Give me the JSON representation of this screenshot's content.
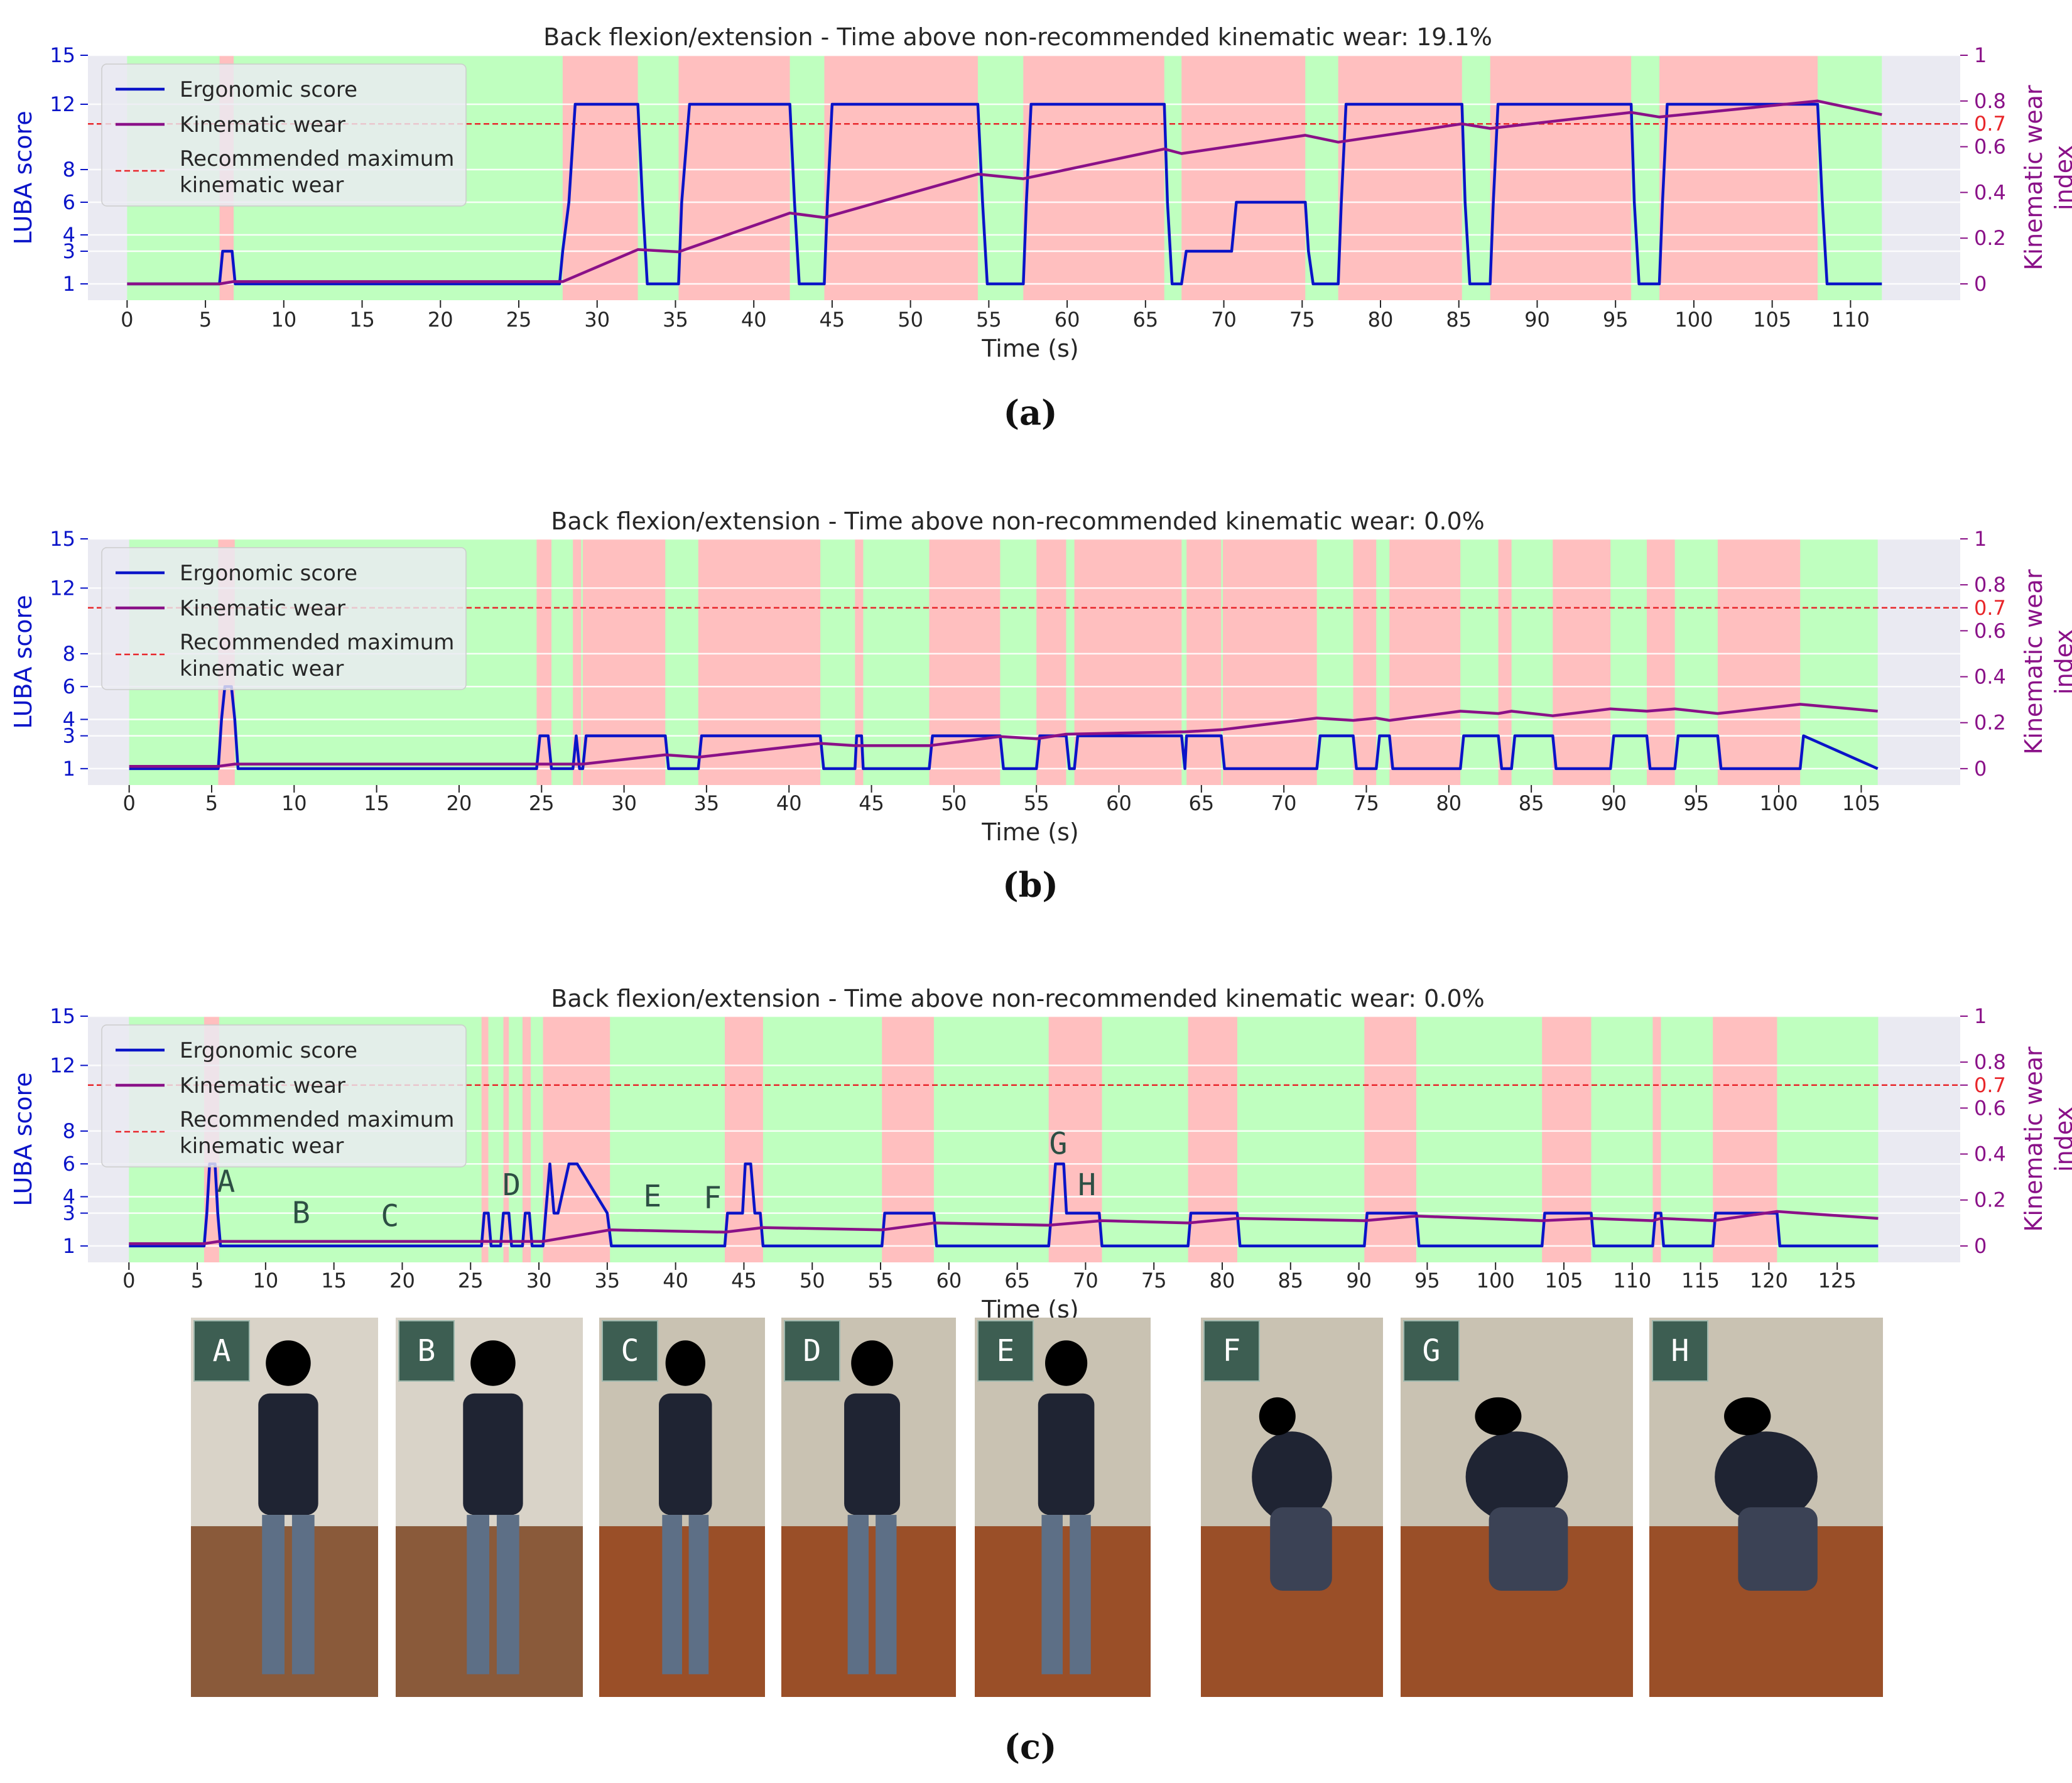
{
  "chart_data": [
    {
      "type": "line",
      "panel_label": "(a)",
      "title": "Back flexion/extension - Time above non-recommended kinematic wear: 19.1%",
      "xlabel": "Time (s)",
      "ylabel_left": "LUBA score",
      "ylabel_right": [
        "Kinematic wear",
        "index"
      ],
      "xlim": [
        -2.5,
        117
      ],
      "x_ticks": [
        0,
        5,
        10,
        15,
        20,
        25,
        30,
        35,
        40,
        45,
        50,
        55,
        60,
        65,
        70,
        75,
        80,
        85,
        90,
        95,
        100,
        105,
        110
      ],
      "y_left_ticks": [
        1,
        3,
        4,
        6,
        8,
        12,
        15
      ],
      "y_left_lim": [
        0,
        15
      ],
      "y_right_ticks": [
        "0",
        "0.2",
        "0.4",
        "0.6",
        "0.7",
        "0.8",
        "1"
      ],
      "y_right_lim": [
        -0.0714,
        1
      ],
      "recommended_max": 0.7,
      "t_end": 112,
      "red_zones": [
        [
          5.9,
          6.8
        ],
        [
          27.8,
          32.6
        ],
        [
          35.2,
          42.3
        ],
        [
          44.5,
          54.3
        ],
        [
          57.2,
          66.2
        ],
        [
          67.3,
          75.2
        ],
        [
          77.3,
          85.2
        ],
        [
          87,
          96
        ],
        [
          97.8,
          107.9
        ]
      ],
      "series": [
        {
          "name": "Ergonomic score",
          "color": "#0a14c8",
          "t": [
            0,
            5.9,
            6.1,
            6.7,
            6.9,
            27.6,
            27.8,
            28.2,
            28.6,
            32.6,
            32.9,
            33.2,
            35.2,
            35.4,
            35.9,
            42.3,
            42.6,
            42.9,
            44.5,
            44.7,
            45,
            54.3,
            54.6,
            54.9,
            57.2,
            57.4,
            57.7,
            66.2,
            66.4,
            66.7,
            67.3,
            67.6,
            67.9,
            70.5,
            70.8,
            75.2,
            75.4,
            75.7,
            77.3,
            77.5,
            77.8,
            85.2,
            85.4,
            85.7,
            87,
            87.2,
            87.5,
            96,
            96.2,
            96.5,
            97.8,
            98,
            98.3,
            107.9,
            108.2,
            108.5,
            112
          ],
          "y": [
            1,
            1,
            3,
            3,
            1,
            1,
            3,
            6,
            12,
            12,
            6,
            1,
            1,
            6,
            12,
            12,
            6,
            1,
            1,
            6,
            12,
            12,
            6,
            1,
            1,
            6,
            12,
            12,
            6,
            1,
            1,
            3,
            3,
            3,
            6,
            6,
            3,
            1,
            1,
            6,
            12,
            12,
            6,
            1,
            1,
            6,
            12,
            12,
            6,
            1,
            1,
            6,
            12,
            12,
            6,
            1,
            1
          ]
        },
        {
          "name": "Kinematic wear",
          "color": "#8a1188",
          "t": [
            0,
            5.9,
            6.8,
            27.8,
            32.6,
            35.2,
            42.3,
            44.5,
            54.3,
            57.2,
            66.2,
            67.3,
            75.2,
            77.3,
            85.2,
            87,
            96,
            97.8,
            107.9,
            112
          ],
          "y": [
            0,
            0,
            0.01,
            0.01,
            0.15,
            0.14,
            0.31,
            0.29,
            0.48,
            0.46,
            0.59,
            0.57,
            0.65,
            0.62,
            0.7,
            0.68,
            0.75,
            0.73,
            0.8,
            0.74
          ]
        }
      ],
      "annotations": []
    },
    {
      "type": "line",
      "panel_label": "(b)",
      "title": "Back flexion/extension - Time above non-recommended kinematic wear: 0.0%",
      "xlabel": "Time (s)",
      "ylabel_left": "LUBA score",
      "ylabel_right": [
        "Kinematic wear",
        "index"
      ],
      "xlim": [
        -2.5,
        111
      ],
      "x_ticks": [
        0,
        5,
        10,
        15,
        20,
        25,
        30,
        35,
        40,
        45,
        50,
        55,
        60,
        65,
        70,
        75,
        80,
        85,
        90,
        95,
        100,
        105
      ],
      "y_left_ticks": [
        1,
        3,
        4,
        6,
        8,
        12,
        15
      ],
      "y_left_lim": [
        0,
        15
      ],
      "y_right_ticks": [
        "0",
        "0.2",
        "0.4",
        "0.6",
        "0.7",
        "0.8",
        "1"
      ],
      "y_right_lim": [
        -0.0714,
        1
      ],
      "recommended_max": 0.7,
      "t_end": 106,
      "red_zones": [
        [
          5.4,
          6.4
        ],
        [
          24.7,
          25.6
        ],
        [
          26.9,
          27.4
        ],
        [
          27.5,
          32.5
        ],
        [
          34.5,
          41.9
        ],
        [
          44,
          44.5
        ],
        [
          48.5,
          52.8
        ],
        [
          55,
          56.8
        ],
        [
          57.3,
          63.8
        ],
        [
          64.1,
          66.2
        ],
        [
          66.3,
          72
        ],
        [
          74.2,
          75.6
        ],
        [
          76.4,
          80.7
        ],
        [
          83,
          83.8
        ],
        [
          86.3,
          89.8
        ],
        [
          92,
          93.7
        ],
        [
          96.3,
          101.3
        ]
      ],
      "series": [
        {
          "name": "Ergonomic score",
          "color": "#0a14c8",
          "t": [
            0,
            5.4,
            5.6,
            5.8,
            6.2,
            6.4,
            6.6,
            24.7,
            24.9,
            25.4,
            25.6,
            26.9,
            27.1,
            27.3,
            27.5,
            27.7,
            32.5,
            32.7,
            34.5,
            34.7,
            41.9,
            42.1,
            44,
            44.1,
            44.4,
            44.5,
            48.5,
            48.7,
            52.8,
            53,
            55,
            55.2,
            56.8,
            57,
            57.3,
            57.5,
            63.8,
            64,
            64.1,
            66.2,
            66.4,
            72,
            72.2,
            74.2,
            74.4,
            75.6,
            75.8,
            76.4,
            76.6,
            80.7,
            80.9,
            83,
            83.2,
            83.8,
            84,
            86.3,
            86.5,
            89.8,
            90,
            92,
            92.2,
            93.7,
            93.9,
            96.3,
            96.5,
            101.3,
            101.5,
            106
          ],
          "y": [
            1,
            1,
            4,
            6,
            6,
            4,
            1,
            1,
            3,
            3,
            1,
            1,
            3,
            1,
            1,
            3,
            3,
            1,
            1,
            3,
            3,
            1,
            1,
            3,
            3,
            1,
            1,
            3,
            3,
            1,
            1,
            3,
            3,
            1,
            1,
            3,
            3,
            1,
            3,
            3,
            1,
            1,
            3,
            3,
            1,
            1,
            3,
            3,
            1,
            1,
            3,
            3,
            1,
            1,
            3,
            3,
            1,
            1,
            3,
            3,
            1,
            1,
            3,
            3,
            1,
            1,
            3,
            1
          ]
        },
        {
          "name": "Kinematic wear",
          "color": "#8a1188",
          "t": [
            0,
            5.4,
            6.4,
            24.7,
            25.6,
            27.5,
            32.5,
            34.5,
            41.9,
            44,
            48.5,
            52.8,
            55,
            56.8,
            64,
            66.3,
            72,
            74.2,
            75.6,
            76.4,
            80.7,
            83,
            83.8,
            86.3,
            89.8,
            92,
            93.7,
            96.3,
            101.3,
            106
          ],
          "y": [
            0.01,
            0.01,
            0.02,
            0.02,
            0.02,
            0.02,
            0.06,
            0.05,
            0.11,
            0.1,
            0.1,
            0.14,
            0.13,
            0.15,
            0.16,
            0.17,
            0.22,
            0.21,
            0.22,
            0.21,
            0.25,
            0.24,
            0.25,
            0.23,
            0.26,
            0.25,
            0.26,
            0.24,
            0.28,
            0.25
          ]
        }
      ],
      "annotations": []
    },
    {
      "type": "line",
      "panel_label": "(c)",
      "title": "Back flexion/extension - Time above non-recommended kinematic wear: 0.0%",
      "xlabel": "Time (s)",
      "ylabel_left": "LUBA score",
      "ylabel_right": [
        "Kinematic wear",
        "index"
      ],
      "xlim": [
        -3,
        134
      ],
      "x_ticks": [
        0,
        5,
        10,
        15,
        20,
        25,
        30,
        35,
        40,
        45,
        50,
        55,
        60,
        65,
        70,
        75,
        80,
        85,
        90,
        95,
        100,
        105,
        110,
        115,
        120,
        125
      ],
      "y_left_ticks": [
        1,
        3,
        4,
        6,
        8,
        12,
        15
      ],
      "y_left_lim": [
        0,
        15
      ],
      "y_right_ticks": [
        "0",
        "0.2",
        "0.4",
        "0.6",
        "0.7",
        "0.8",
        "1"
      ],
      "y_right_lim": [
        -0.0714,
        1
      ],
      "recommended_max": 0.7,
      "t_end": 128,
      "red_zones": [
        [
          5.5,
          6.6
        ],
        [
          25.8,
          26.3
        ],
        [
          27.4,
          27.8
        ],
        [
          28.8,
          29.4
        ],
        [
          30.3,
          35.2
        ],
        [
          43.6,
          46.4
        ],
        [
          55.1,
          58.9
        ],
        [
          67.3,
          71.2
        ],
        [
          77.5,
          81.1
        ],
        [
          90.4,
          94.2
        ],
        [
          103.4,
          107
        ],
        [
          111.5,
          112.1
        ],
        [
          115.9,
          120.6
        ]
      ],
      "series": [
        {
          "name": "Ergonomic score",
          "color": "#0a14c8",
          "t": [
            0,
            5.5,
            5.7,
            5.9,
            6.3,
            6.5,
            6.7,
            25.8,
            26,
            26.3,
            26.5,
            27.2,
            27.4,
            27.8,
            28,
            28.8,
            29,
            29.3,
            29.5,
            30.3,
            30.5,
            30.8,
            31.1,
            31.4,
            32.2,
            32.5,
            32.8,
            35,
            35.3,
            35.6,
            43.6,
            43.8,
            44.9,
            45.1,
            45.5,
            45.8,
            46.2,
            46.4,
            55.1,
            55.3,
            58.9,
            59.1,
            67.3,
            67.5,
            67.8,
            68.4,
            68.6,
            68.9,
            71,
            71.2,
            77.5,
            77.7,
            81.1,
            81.3,
            90.4,
            90.6,
            94.2,
            94.4,
            103.4,
            103.6,
            107,
            107.2,
            111.5,
            111.7,
            112.1,
            112.3,
            115.9,
            116.1,
            120.6,
            120.8,
            128
          ],
          "y": [
            1,
            1,
            3,
            6,
            6,
            3,
            1,
            1,
            3,
            3,
            1,
            1,
            3,
            3,
            1,
            1,
            3,
            3,
            1,
            1,
            3,
            6,
            3,
            3,
            6,
            6,
            6,
            3,
            1,
            1,
            1,
            3,
            3,
            6,
            6,
            3,
            3,
            1,
            1,
            3,
            3,
            1,
            1,
            3,
            6,
            6,
            3,
            3,
            3,
            1,
            1,
            3,
            3,
            1,
            1,
            3,
            3,
            1,
            1,
            3,
            3,
            1,
            1,
            3,
            3,
            1,
            1,
            3,
            3,
            1,
            1
          ]
        },
        {
          "name": "Kinematic wear",
          "color": "#8a1188",
          "t": [
            0,
            5.5,
            6.6,
            25.8,
            30.3,
            35.2,
            43.6,
            46.4,
            55.1,
            58.9,
            67.3,
            71.2,
            77.5,
            81.1,
            90.4,
            94.2,
            103.4,
            107,
            111.5,
            112.1,
            115.9,
            120.6,
            128
          ],
          "y": [
            0.01,
            0.01,
            0.02,
            0.02,
            0.02,
            0.07,
            0.06,
            0.08,
            0.07,
            0.1,
            0.09,
            0.11,
            0.1,
            0.12,
            0.11,
            0.13,
            0.11,
            0.12,
            0.11,
            0.12,
            0.11,
            0.15,
            0.12
          ]
        }
      ],
      "annotations": [
        {
          "text": "A",
          "x": 7.1,
          "y": 4.3
        },
        {
          "text": "B",
          "x": 12.6,
          "y": 2.4
        },
        {
          "text": "C",
          "x": 19.1,
          "y": 2.2
        },
        {
          "text": "D",
          "x": 28,
          "y": 4.1
        },
        {
          "text": "E",
          "x": 38.3,
          "y": 3.4
        },
        {
          "text": "F",
          "x": 42.7,
          "y": 3.3
        },
        {
          "text": "G",
          "x": 68,
          "y": 6.6
        },
        {
          "text": "H",
          "x": 70.1,
          "y": 4.1
        }
      ]
    }
  ],
  "legend": {
    "ergonomic": "Ergonomic score",
    "kinematic": "Kinematic wear",
    "recommended_line1": "Recommended maximum",
    "recommended_line2": "kinematic wear"
  },
  "colors": {
    "ergonomic": "#0a14c8",
    "kinematic": "#8a1188",
    "recommended": "#e8262a",
    "safe_zone": "#bfffbf",
    "unsafe_zone": "#ffbfbf",
    "axes_bg": "#eaeaf2"
  },
  "photos": [
    {
      "label": "A"
    },
    {
      "label": "B"
    },
    {
      "label": "C"
    },
    {
      "label": "D"
    },
    {
      "label": "E"
    },
    {
      "label": "F"
    },
    {
      "label": "G"
    },
    {
      "label": "H"
    }
  ]
}
